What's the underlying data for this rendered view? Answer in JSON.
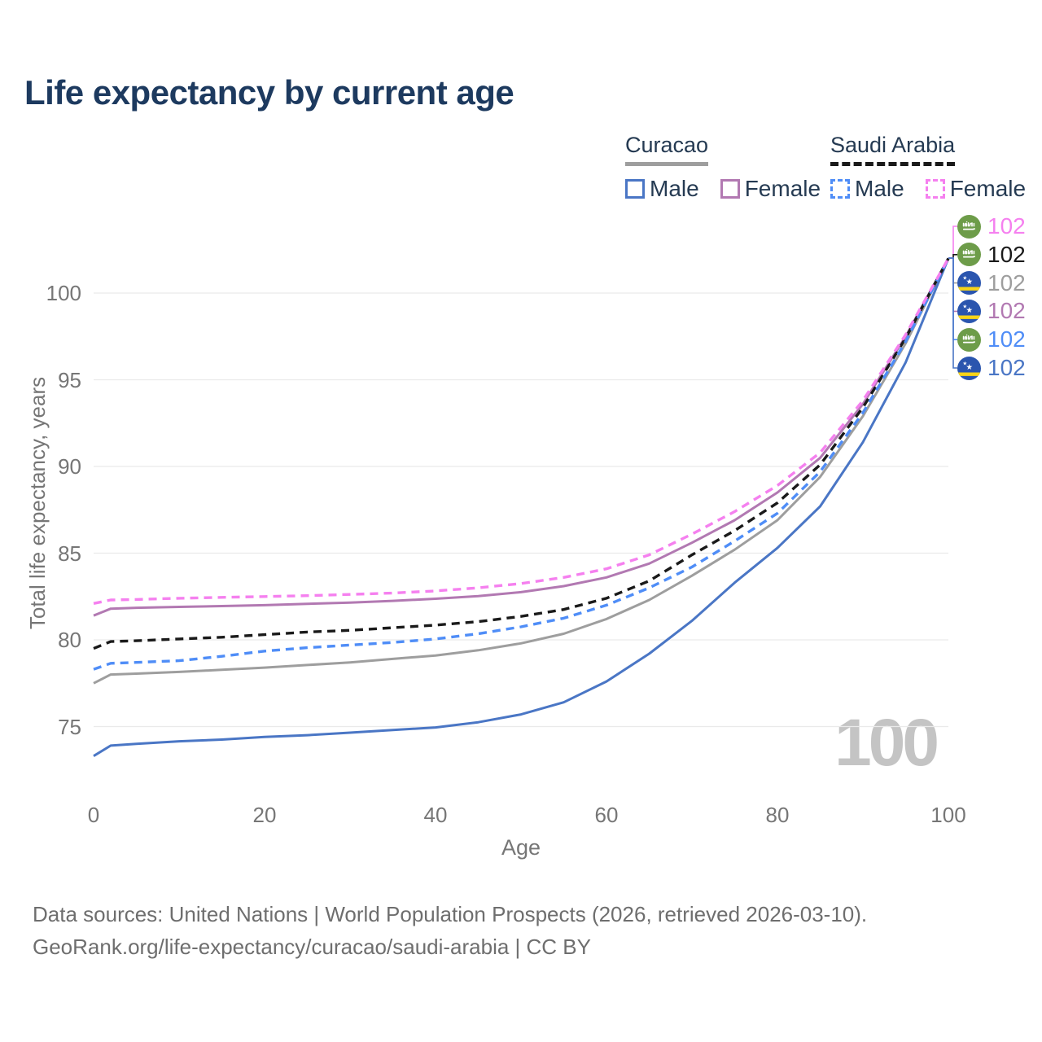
{
  "title": "Life expectancy by current age",
  "legend": {
    "groups": [
      {
        "label": "Curacao",
        "line_style": "solid",
        "underline_color": "#9e9e9e",
        "items": [
          {
            "label": "Male",
            "color": "#4a76c5"
          },
          {
            "label": "Female",
            "color": "#b279b2"
          }
        ]
      },
      {
        "label": "Saudi Arabia",
        "line_style": "dashed",
        "underline_color": "#1a1a1a",
        "items": [
          {
            "label": "Male",
            "color": "#4f8df7"
          },
          {
            "label": "Female",
            "color": "#f580ef"
          }
        ]
      }
    ]
  },
  "chart_data": {
    "type": "line",
    "title": "Life expectancy by current age",
    "xlabel": "Age",
    "ylabel": "Total life expectancy, years",
    "xlim": [
      0,
      100
    ],
    "ylim": [
      73,
      102.5
    ],
    "x_ticks": [
      0,
      20,
      40,
      60,
      80,
      100
    ],
    "y_ticks": [
      75,
      80,
      85,
      90,
      95,
      100
    ],
    "grid": "horizontal-only",
    "legend_position": "top-right",
    "ages": [
      0,
      2,
      5,
      10,
      15,
      20,
      25,
      30,
      35,
      40,
      45,
      50,
      55,
      60,
      65,
      70,
      75,
      80,
      85,
      90,
      95,
      100
    ],
    "series": [
      {
        "name": "Curacao Total",
        "country": "curacao",
        "sex": "total",
        "color": "#9e9e9e",
        "dashed": false,
        "values": [
          77.5,
          78.0,
          78.05,
          78.15,
          78.27,
          78.4,
          78.55,
          78.7,
          78.9,
          79.1,
          79.4,
          79.8,
          80.35,
          81.2,
          82.3,
          83.7,
          85.2,
          86.9,
          89.4,
          92.9,
          97.1,
          102
        ]
      },
      {
        "name": "Curacao Female",
        "country": "curacao",
        "sex": "female",
        "color": "#b279b2",
        "dashed": false,
        "values": [
          81.4,
          81.8,
          81.85,
          81.9,
          81.95,
          82.0,
          82.08,
          82.15,
          82.25,
          82.37,
          82.52,
          82.75,
          83.1,
          83.6,
          84.4,
          85.6,
          86.9,
          88.5,
          90.5,
          93.6,
          97.5,
          102
        ]
      },
      {
        "name": "Curacao Male",
        "country": "curacao",
        "sex": "male",
        "color": "#4a76c5",
        "dashed": false,
        "values": [
          73.3,
          73.9,
          74.0,
          74.15,
          74.25,
          74.4,
          74.5,
          74.65,
          74.8,
          74.95,
          75.25,
          75.7,
          76.4,
          77.6,
          79.2,
          81.1,
          83.3,
          85.3,
          87.7,
          91.4,
          96.0,
          102
        ]
      },
      {
        "name": "Saudi Arabia Total",
        "country": "saudi-arabia",
        "sex": "total",
        "color": "#1a1a1a",
        "dashed": true,
        "values": [
          79.5,
          79.9,
          79.95,
          80.05,
          80.15,
          80.3,
          80.45,
          80.55,
          80.7,
          80.85,
          81.05,
          81.35,
          81.75,
          82.4,
          83.4,
          84.9,
          86.3,
          87.9,
          90.1,
          93.4,
          97.4,
          102
        ]
      },
      {
        "name": "Saudi Arabia Male",
        "country": "saudi-arabia",
        "sex": "male",
        "color": "#4f8df7",
        "dashed": true,
        "values": [
          78.3,
          78.65,
          78.7,
          78.8,
          79.05,
          79.35,
          79.55,
          79.7,
          79.85,
          80.05,
          80.35,
          80.75,
          81.25,
          82.0,
          83.0,
          84.2,
          85.7,
          87.3,
          89.7,
          93.1,
          97.2,
          102
        ]
      },
      {
        "name": "Saudi Arabia Female",
        "country": "saudi-arabia",
        "sex": "female",
        "color": "#f580ef",
        "dashed": true,
        "values": [
          82.1,
          82.3,
          82.33,
          82.4,
          82.45,
          82.5,
          82.55,
          82.62,
          82.7,
          82.82,
          83.0,
          83.25,
          83.6,
          84.1,
          84.9,
          86.1,
          87.4,
          88.9,
          90.8,
          93.8,
          97.6,
          102
        ]
      }
    ],
    "end_labels": [
      {
        "flag": "saudi-arabia",
        "value": "102",
        "color": "#f580ef"
      },
      {
        "flag": "saudi-arabia",
        "value": "102",
        "color": "#1a1a1a"
      },
      {
        "flag": "curacao",
        "value": "102",
        "color": "#9e9e9e"
      },
      {
        "flag": "curacao",
        "value": "102",
        "color": "#b279b2"
      },
      {
        "flag": "saudi-arabia",
        "value": "102",
        "color": "#4f8df7"
      },
      {
        "flag": "curacao",
        "value": "102",
        "color": "#4a76c5"
      }
    ]
  },
  "watermark": "100",
  "colors": {
    "title": "#1d3a5f",
    "axis_text": "#767676",
    "grid": "#eaeaea",
    "saudi_flag_green": "#6d9c49",
    "curacao_flag_blue": "#2a55ae",
    "curacao_flag_yellow": "#f7d418"
  },
  "footer": {
    "line1": "Data sources: United Nations | World Population Prospects (2026, retrieved 2026-03-10).",
    "line2": "GeoRank.org/life-expectancy/curacao/saudi-arabia | CC BY"
  }
}
